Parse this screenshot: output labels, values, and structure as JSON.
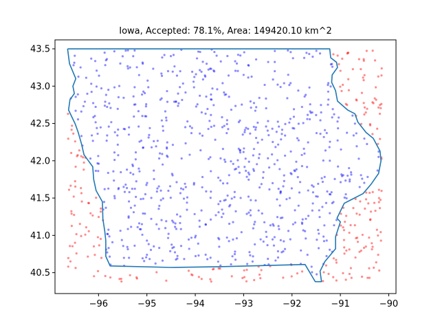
{
  "chart_data": {
    "type": "scatter",
    "title": "Iowa, Accepted: 78.1%, Area: 149420.10 km^2",
    "xlim": [
      -96.9,
      -89.85
    ],
    "ylim": [
      40.22,
      43.62
    ],
    "xticks": [
      -96,
      -95,
      -94,
      -93,
      -92,
      -91,
      -90
    ],
    "xtick_labels": [
      "−96",
      "−95",
      "−94",
      "−93",
      "−92",
      "−91",
      "−90"
    ],
    "yticks": [
      40.5,
      41.0,
      41.5,
      42.0,
      42.5,
      43.0,
      43.5
    ],
    "ytick_labels": [
      "40.5",
      "41.0",
      "41.5",
      "42.0",
      "42.5",
      "43.0",
      "43.5"
    ],
    "sample_bounds": {
      "lon": [
        -96.64,
        -90.14
      ],
      "lat": [
        40.38,
        43.5
      ]
    },
    "series": [
      {
        "type": "line",
        "color": "#1f77b4"
      },
      {
        "type": "scatter",
        "color": "#0000ff",
        "alpha": 0.45
      },
      {
        "type": "scatter",
        "color": "#ff0000",
        "alpha": 0.45
      }
    ],
    "outline": [
      [
        -96.64,
        43.5
      ],
      [
        -91.22,
        43.5
      ],
      [
        -91.2,
        43.38
      ],
      [
        -91.08,
        43.32
      ],
      [
        -91.06,
        43.25
      ],
      [
        -91.17,
        43.15
      ],
      [
        -91.18,
        43.05
      ],
      [
        -91.1,
        42.94
      ],
      [
        -91.06,
        42.8
      ],
      [
        -90.85,
        42.68
      ],
      [
        -90.7,
        42.63
      ],
      [
        -90.64,
        42.52
      ],
      [
        -90.47,
        42.38
      ],
      [
        -90.32,
        42.3
      ],
      [
        -90.18,
        42.13
      ],
      [
        -90.16,
        42.0
      ],
      [
        -90.21,
        41.83
      ],
      [
        -90.36,
        41.69
      ],
      [
        -90.53,
        41.56
      ],
      [
        -90.92,
        41.43
      ],
      [
        -91.07,
        41.23
      ],
      [
        -91.0,
        41.18
      ],
      [
        -91.1,
        40.98
      ],
      [
        -91.1,
        40.82
      ],
      [
        -91.32,
        40.65
      ],
      [
        -91.42,
        40.52
      ],
      [
        -91.39,
        40.38
      ],
      [
        -91.52,
        40.38
      ],
      [
        -91.73,
        40.61
      ],
      [
        -93.5,
        40.58
      ],
      [
        -94.5,
        40.57
      ],
      [
        -95.76,
        40.59
      ],
      [
        -95.85,
        40.72
      ],
      [
        -95.85,
        40.93
      ],
      [
        -95.87,
        41.05
      ],
      [
        -95.91,
        41.22
      ],
      [
        -95.92,
        41.45
      ],
      [
        -96.05,
        41.6
      ],
      [
        -96.1,
        41.75
      ],
      [
        -96.12,
        41.92
      ],
      [
        -96.3,
        42.08
      ],
      [
        -96.35,
        42.22
      ],
      [
        -96.42,
        42.38
      ],
      [
        -96.48,
        42.49
      ],
      [
        -96.62,
        42.68
      ],
      [
        -96.59,
        42.82
      ],
      [
        -96.5,
        42.9
      ],
      [
        -96.53,
        43.0
      ],
      [
        -96.47,
        43.1
      ],
      [
        -96.6,
        43.3
      ],
      [
        -96.64,
        43.5
      ]
    ]
  }
}
